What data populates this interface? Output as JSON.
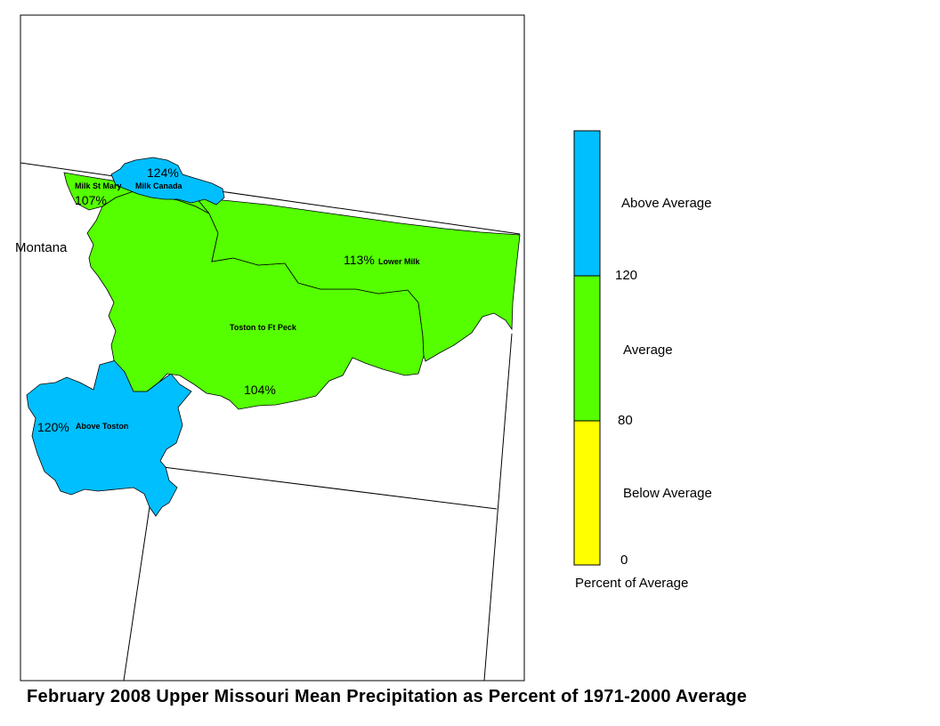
{
  "title": "February 2008 Upper Missouri Mean Precipitation as Percent of 1971-2000 Average",
  "state_label": "Montana",
  "basins": [
    {
      "name": "Milk St Mary",
      "percent": "107%",
      "category": "Average"
    },
    {
      "name": "Milk Canada",
      "percent": "124%",
      "category": "Above Average"
    },
    {
      "name": "Lower Milk",
      "percent": "113%",
      "category": "Average"
    },
    {
      "name": "Toston to Ft Peck",
      "percent": "104%",
      "category": "Average"
    },
    {
      "name": "Above Toston",
      "percent": "120%",
      "category": "Above Average"
    }
  ],
  "legend": {
    "title": "Percent of Average",
    "classes": [
      {
        "label": "Above Average",
        "color": "#00bfff",
        "range": [
          120,
          null
        ]
      },
      {
        "label": "Average",
        "color": "#55ff00",
        "range": [
          80,
          120
        ]
      },
      {
        "label": "Below Average",
        "color": "#ffff00",
        "range": [
          0,
          80
        ]
      }
    ],
    "breaks": [
      "120",
      "80",
      "0"
    ]
  },
  "colors": {
    "above_average": "#00bfff",
    "average": "#55ff00",
    "below_average": "#ffff00",
    "boundary": "#000000"
  }
}
